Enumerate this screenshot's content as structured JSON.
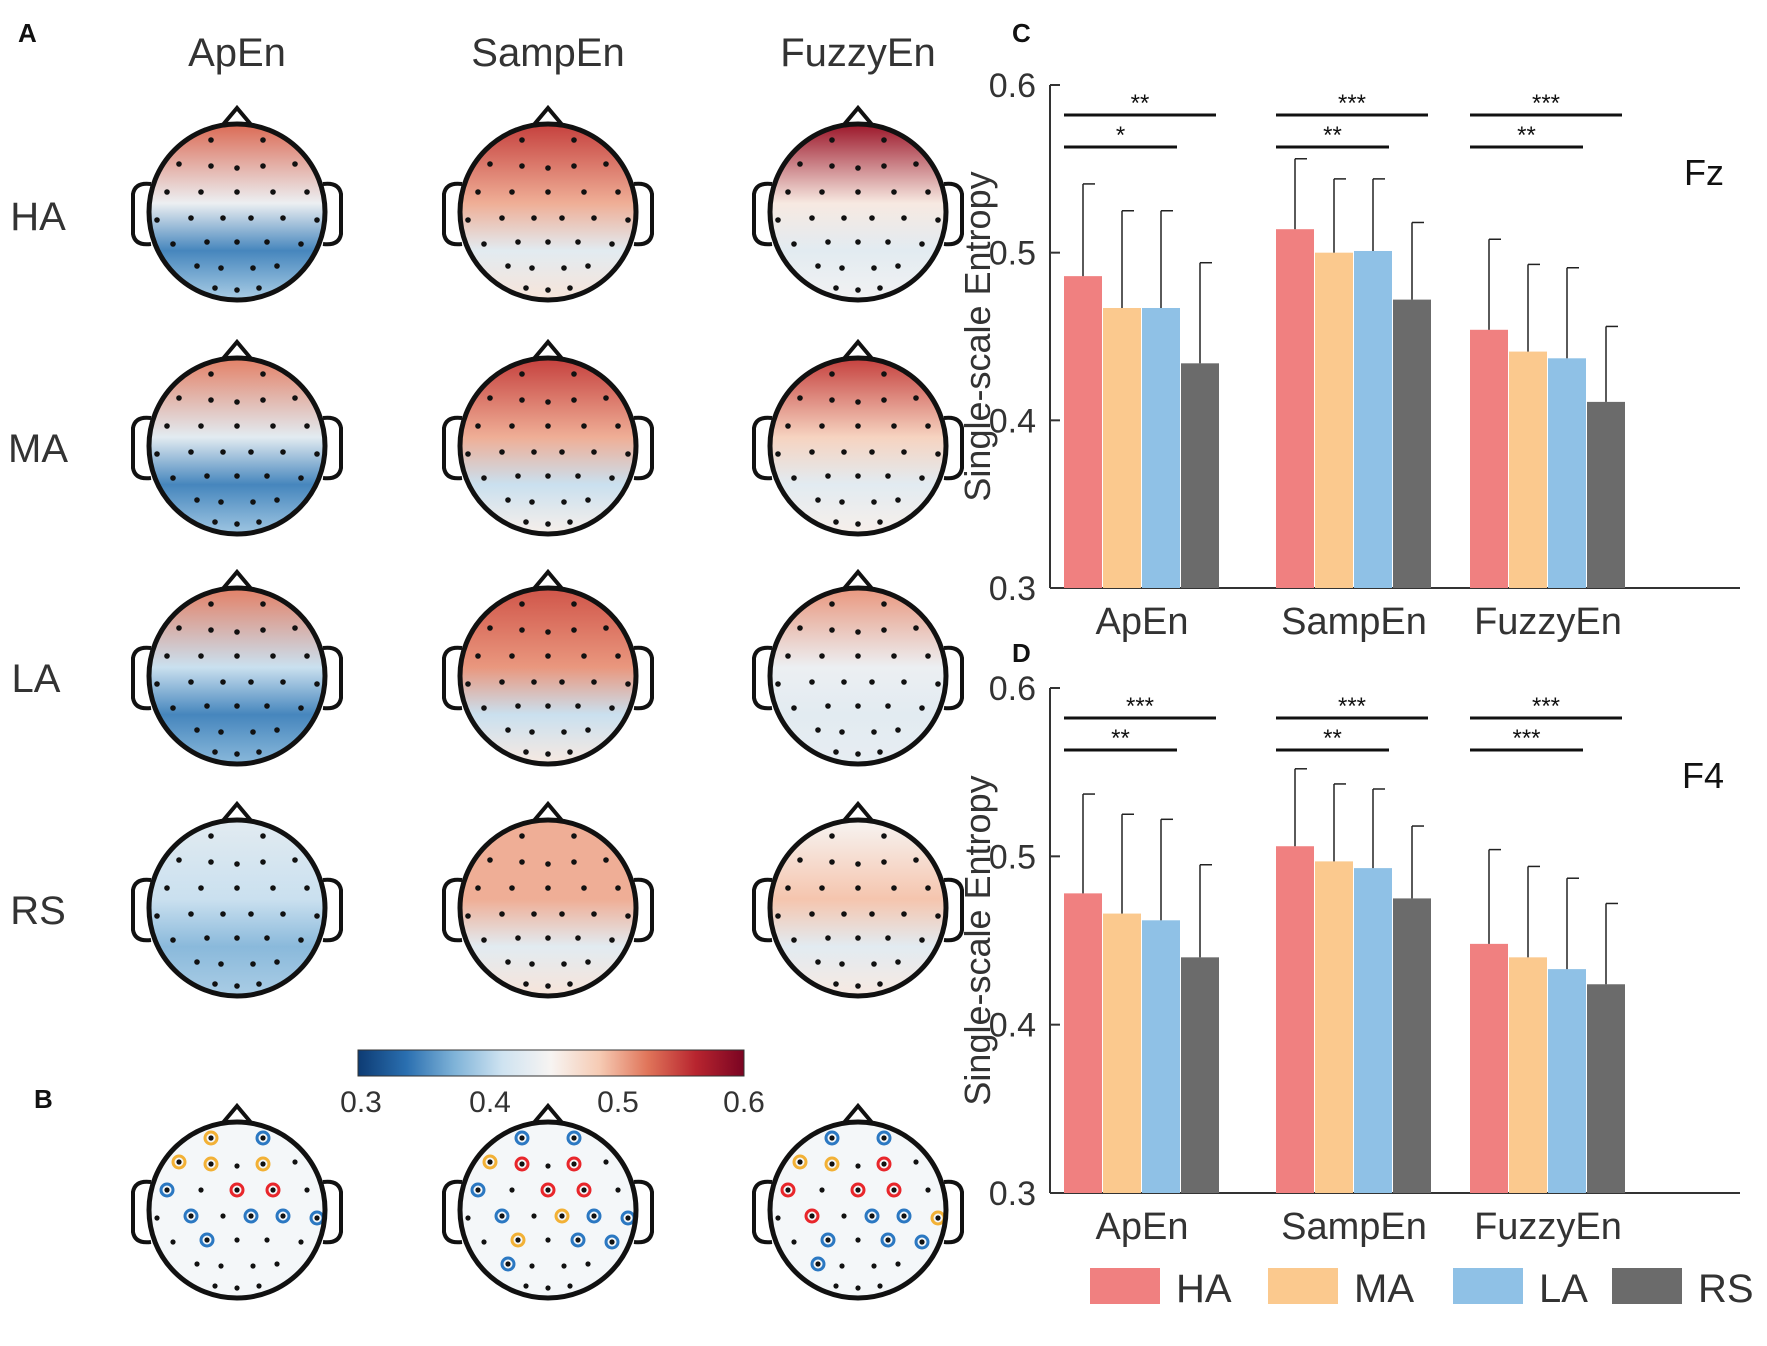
{
  "panels": {
    "A": "A",
    "B": "B",
    "C": "C",
    "D": "D"
  },
  "topomaps": {
    "columns": [
      "ApEn",
      "SampEn",
      "FuzzyEn"
    ],
    "rows": [
      "HA",
      "MA",
      "LA",
      "RS"
    ],
    "colorbar": {
      "min": 0.3,
      "max": 0.6,
      "ticks": [
        "0.3",
        "0.4",
        "0.5",
        "0.6"
      ],
      "colors": [
        "#0d3b73",
        "#2a6fb0",
        "#7fb3d8",
        "#cfe3f1",
        "#f7f4f2",
        "#f6cbb4",
        "#e0755a",
        "#b8252f",
        "#7a0422"
      ]
    },
    "maps": [
      {
        "row": "HA",
        "column": "ApEn",
        "front": 0.53,
        "middle": 0.44,
        "back": 0.35
      },
      {
        "row": "HA",
        "column": "SampEn",
        "front": 0.55,
        "middle": 0.5,
        "back": 0.43
      },
      {
        "row": "HA",
        "column": "FuzzyEn",
        "front": 0.58,
        "middle": 0.46,
        "back": 0.43
      },
      {
        "row": "MA",
        "column": "ApEn",
        "front": 0.52,
        "middle": 0.43,
        "back": 0.35
      },
      {
        "row": "MA",
        "column": "SampEn",
        "front": 0.55,
        "middle": 0.5,
        "back": 0.41
      },
      {
        "row": "MA",
        "column": "FuzzyEn",
        "front": 0.55,
        "middle": 0.48,
        "back": 0.43
      },
      {
        "row": "LA",
        "column": "ApEn",
        "front": 0.52,
        "middle": 0.41,
        "back": 0.35
      },
      {
        "row": "LA",
        "column": "SampEn",
        "front": 0.54,
        "middle": 0.51,
        "back": 0.41
      },
      {
        "row": "LA",
        "column": "FuzzyEn",
        "front": 0.51,
        "middle": 0.44,
        "back": 0.43
      },
      {
        "row": "RS",
        "column": "ApEn",
        "front": 0.43,
        "middle": 0.41,
        "back": 0.38
      },
      {
        "row": "RS",
        "column": "SampEn",
        "front": 0.5,
        "middle": 0.5,
        "back": 0.43
      },
      {
        "row": "RS",
        "column": "FuzzyEn",
        "front": 0.45,
        "middle": 0.49,
        "back": 0.43
      }
    ],
    "significance_maps": [
      {
        "column": "ApEn",
        "marks": [
          "yellow",
          "blue",
          "yellow",
          "yellow",
          "yellow",
          "red",
          "red",
          "blue",
          "blue",
          "blue",
          "blue",
          "blue",
          "blue"
        ]
      },
      {
        "column": "SampEn",
        "marks": [
          "blue",
          "blue",
          "yellow",
          "red",
          "red",
          "red",
          "red",
          "blue",
          "blue",
          "yellow",
          "blue",
          "blue",
          "yellow",
          "blue",
          "blue",
          "blue"
        ]
      },
      {
        "column": "FuzzyEn",
        "marks": [
          "blue",
          "blue",
          "yellow",
          "yellow",
          "red",
          "red",
          "red",
          "red",
          "red",
          "blue",
          "blue",
          "yellow",
          "blue",
          "blue",
          "blue",
          "blue"
        ]
      }
    ]
  },
  "chart_data": [
    {
      "type": "bar",
      "panel": "C",
      "channel": "Fz",
      "categories": [
        "ApEn",
        "SampEn",
        "FuzzyEn"
      ],
      "ylabel": "Single-scale Entropy",
      "ylim": [
        0.3,
        0.6
      ],
      "yticks": [
        "0.3",
        "0.4",
        "0.5",
        "0.6"
      ],
      "series": [
        {
          "name": "HA",
          "color": "#f08080",
          "values": [
            0.486,
            0.514,
            0.454
          ],
          "errors": [
            0.055,
            0.042,
            0.054
          ]
        },
        {
          "name": "MA",
          "color": "#fbc98e",
          "values": [
            0.467,
            0.5,
            0.441
          ],
          "errors": [
            0.058,
            0.044,
            0.052
          ]
        },
        {
          "name": "LA",
          "color": "#8fc1e6",
          "values": [
            0.467,
            0.501,
            0.437
          ],
          "errors": [
            0.058,
            0.043,
            0.054
          ]
        },
        {
          "name": "RS",
          "color": "#6b6b6b",
          "values": [
            0.434,
            0.472,
            0.411
          ],
          "errors": [
            0.06,
            0.046,
            0.045
          ]
        }
      ],
      "brackets": [
        {
          "category": "ApEn",
          "to": "RS",
          "label": "**"
        },
        {
          "category": "ApEn",
          "to": "LA",
          "label": "*"
        },
        {
          "category": "SampEn",
          "to": "RS",
          "label": "***"
        },
        {
          "category": "SampEn",
          "to": "LA",
          "label": "**"
        },
        {
          "category": "FuzzyEn",
          "to": "RS",
          "label": "***"
        },
        {
          "category": "FuzzyEn",
          "to": "LA",
          "label": "**"
        }
      ]
    },
    {
      "type": "bar",
      "panel": "D",
      "channel": "F4",
      "categories": [
        "ApEn",
        "SampEn",
        "FuzzyEn"
      ],
      "ylabel": "Single-scale Entropy",
      "ylim": [
        0.3,
        0.6
      ],
      "yticks": [
        "0.3",
        "0.4",
        "0.5",
        "0.6"
      ],
      "series": [
        {
          "name": "HA",
          "color": "#f08080",
          "values": [
            0.478,
            0.506,
            0.448
          ],
          "errors": [
            0.059,
            0.046,
            0.056
          ]
        },
        {
          "name": "MA",
          "color": "#fbc98e",
          "values": [
            0.466,
            0.497,
            0.44
          ],
          "errors": [
            0.059,
            0.046,
            0.054
          ]
        },
        {
          "name": "LA",
          "color": "#8fc1e6",
          "values": [
            0.462,
            0.493,
            0.433
          ],
          "errors": [
            0.06,
            0.047,
            0.054
          ]
        },
        {
          "name": "RS",
          "color": "#6b6b6b",
          "values": [
            0.44,
            0.475,
            0.424
          ],
          "errors": [
            0.055,
            0.043,
            0.048
          ]
        }
      ],
      "brackets": [
        {
          "category": "ApEn",
          "to": "RS",
          "label": "***"
        },
        {
          "category": "ApEn",
          "to": "LA",
          "label": "**"
        },
        {
          "category": "SampEn",
          "to": "RS",
          "label": "***"
        },
        {
          "category": "SampEn",
          "to": "LA",
          "label": "**"
        },
        {
          "category": "FuzzyEn",
          "to": "RS",
          "label": "***"
        },
        {
          "category": "FuzzyEn",
          "to": "LA",
          "label": "***"
        }
      ]
    }
  ],
  "legend": [
    "HA",
    "MA",
    "LA",
    "RS"
  ]
}
